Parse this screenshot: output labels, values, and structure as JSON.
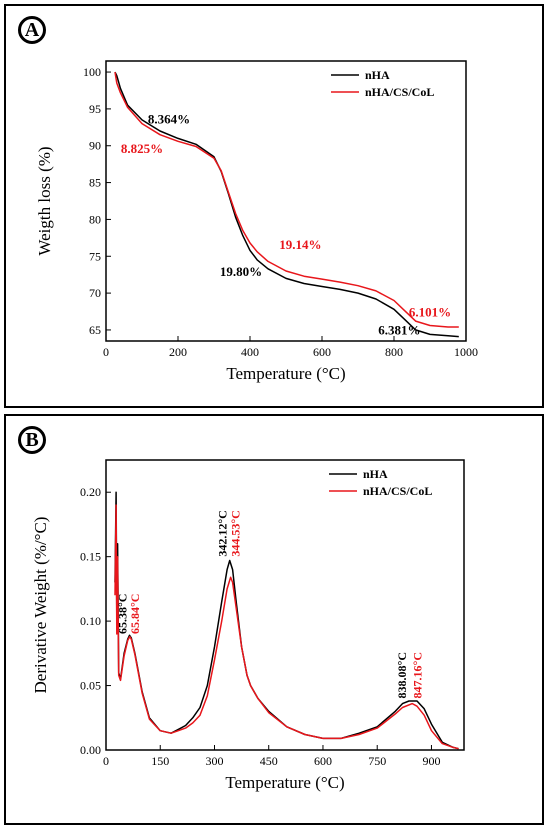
{
  "chart_data": [
    {
      "panel": "A",
      "type": "line",
      "xlabel": "Temperature (°C)",
      "ylabel": "Weigth loss (%)",
      "xlim": [
        0,
        1000
      ],
      "ylim": [
        63.5,
        101.5
      ],
      "xticks": [
        "0",
        "200",
        "400",
        "600",
        "800",
        "1000"
      ],
      "yticks": [
        "65",
        "70",
        "75",
        "80",
        "85",
        "90",
        "95",
        "100"
      ],
      "legend_position": "top-right",
      "series": [
        {
          "name": "nHA",
          "color": "#000000",
          "x": [
            25,
            30,
            40,
            60,
            100,
            150,
            200,
            250,
            300,
            320,
            340,
            360,
            380,
            400,
            420,
            450,
            500,
            550,
            600,
            650,
            700,
            750,
            800,
            830,
            860,
            900,
            950,
            980
          ],
          "y": [
            100,
            99.5,
            97.8,
            95.5,
            93.5,
            92.0,
            91.0,
            90.2,
            88.5,
            86.5,
            83.5,
            80.3,
            77.8,
            75.8,
            74.5,
            73.3,
            72.0,
            71.3,
            70.9,
            70.5,
            70.0,
            69.2,
            67.8,
            66.4,
            65.0,
            64.4,
            64.2,
            64.1
          ]
        },
        {
          "name": "nHA/CS/CoL",
          "color": "#e8161b",
          "x": [
            25,
            30,
            40,
            60,
            100,
            150,
            200,
            250,
            300,
            320,
            340,
            360,
            380,
            400,
            420,
            450,
            500,
            550,
            600,
            650,
            700,
            750,
            800,
            830,
            860,
            900,
            950,
            980
          ],
          "y": [
            100,
            98.5,
            97.2,
            95.2,
            93.0,
            91.5,
            90.6,
            89.9,
            88.3,
            86.6,
            83.7,
            80.8,
            78.5,
            76.8,
            75.6,
            74.3,
            73.0,
            72.3,
            71.9,
            71.5,
            71.0,
            70.3,
            69.0,
            67.6,
            66.2,
            65.6,
            65.4,
            65.4
          ]
        }
      ],
      "annotations": [
        {
          "text": "8.364%",
          "color": "#000000",
          "x": 175,
          "y": 93.0
        },
        {
          "text": "8.825%",
          "color": "#e8161b",
          "x": 100,
          "y": 89.0
        },
        {
          "text": "19.14%",
          "color": "#e8161b",
          "x": 540,
          "y": 76.0
        },
        {
          "text": "19.80%",
          "color": "#000000",
          "x": 375,
          "y": 72.3
        },
        {
          "text": "6.101%",
          "color": "#e8161b",
          "x": 900,
          "y": 66.8
        },
        {
          "text": "6.381%",
          "color": "#000000",
          "x": 815,
          "y": 64.4
        }
      ]
    },
    {
      "panel": "B",
      "type": "line",
      "xlabel": "Temperature (°C)",
      "ylabel": "Derivative Weight (%/°C)",
      "xlim": [
        0,
        990
      ],
      "ylim": [
        0,
        0.225
      ],
      "xticks": [
        "0",
        "150",
        "300",
        "450",
        "600",
        "750",
        "900"
      ],
      "yticks": [
        "0.00",
        "0.05",
        "0.10",
        "0.15",
        "0.20"
      ],
      "legend_position": "top-right",
      "series": [
        {
          "name": "nHA",
          "color": "#000000",
          "x": [
            25,
            28,
            30,
            32,
            35,
            40,
            50,
            60,
            65,
            70,
            80,
            100,
            120,
            150,
            180,
            200,
            220,
            240,
            260,
            280,
            300,
            320,
            335,
            342,
            350,
            360,
            375,
            390,
            400,
            420,
            450,
            500,
            550,
            600,
            650,
            700,
            750,
            800,
            820,
            838,
            860,
            880,
            900,
            930,
            960,
            975
          ],
          "y": [
            0.13,
            0.2,
            0.1,
            0.16,
            0.06,
            0.055,
            0.075,
            0.086,
            0.089,
            0.087,
            0.075,
            0.045,
            0.025,
            0.015,
            0.013,
            0.016,
            0.019,
            0.025,
            0.033,
            0.05,
            0.08,
            0.115,
            0.14,
            0.147,
            0.14,
            0.115,
            0.08,
            0.058,
            0.05,
            0.04,
            0.03,
            0.018,
            0.012,
            0.009,
            0.009,
            0.013,
            0.018,
            0.03,
            0.036,
            0.038,
            0.038,
            0.032,
            0.02,
            0.006,
            0.002,
            0.001
          ]
        },
        {
          "name": "nHA/CS/CoL",
          "color": "#e8161b",
          "x": [
            25,
            28,
            30,
            32,
            35,
            40,
            50,
            60,
            65.84,
            70,
            80,
            100,
            120,
            150,
            180,
            200,
            220,
            240,
            260,
            280,
            300,
            320,
            335,
            344.53,
            350,
            360,
            375,
            390,
            400,
            420,
            450,
            500,
            550,
            600,
            650,
            700,
            750,
            800,
            820,
            847.16,
            860,
            880,
            900,
            930,
            960,
            975
          ],
          "y": [
            0.12,
            0.19,
            0.09,
            0.15,
            0.058,
            0.054,
            0.073,
            0.085,
            0.088,
            0.086,
            0.074,
            0.044,
            0.024,
            0.015,
            0.013,
            0.015,
            0.017,
            0.021,
            0.027,
            0.042,
            0.07,
            0.1,
            0.125,
            0.134,
            0.13,
            0.11,
            0.08,
            0.058,
            0.05,
            0.04,
            0.029,
            0.018,
            0.012,
            0.009,
            0.009,
            0.012,
            0.017,
            0.028,
            0.033,
            0.036,
            0.034,
            0.027,
            0.015,
            0.005,
            0.002,
            0.001
          ]
        }
      ],
      "annotations": [
        {
          "text": "65.38°C",
          "color": "#000000",
          "x": 65.38,
          "y": 0.09,
          "rotate": -90
        },
        {
          "text": "65.84°C",
          "color": "#e8161b",
          "x": 65.84,
          "y": 0.09,
          "rotate": -90
        },
        {
          "text": "342.12°C",
          "color": "#000000",
          "x": 342.12,
          "y": 0.15,
          "rotate": -90
        },
        {
          "text": "344.53°C",
          "color": "#e8161b",
          "x": 344.53,
          "y": 0.15,
          "rotate": -90
        },
        {
          "text": "838.08°C",
          "color": "#000000",
          "x": 838.08,
          "y": 0.04,
          "rotate": -90
        },
        {
          "text": "847.16°C",
          "color": "#e8161b",
          "x": 847.16,
          "y": 0.04,
          "rotate": -90
        }
      ]
    }
  ],
  "panels": {
    "a_label": "A",
    "b_label": "B"
  }
}
